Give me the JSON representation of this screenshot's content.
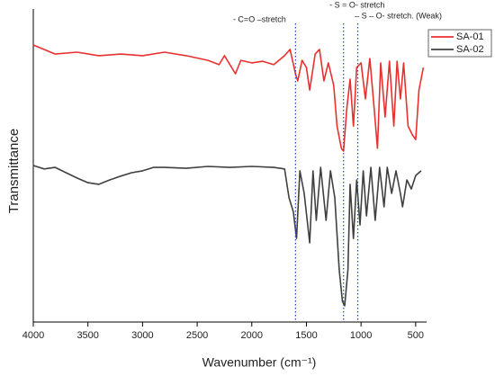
{
  "chart_data": {
    "type": "line",
    "xlabel": "Wavenumber (cm⁻¹)",
    "ylabel": "Transmittance",
    "xlim": [
      4000,
      400
    ],
    "ylim": [
      0,
      100
    ],
    "xticks": [
      4000,
      3500,
      3000,
      2500,
      2000,
      1500,
      1000,
      500
    ],
    "legend": "upper right",
    "annotations": [
      {
        "text": "- C=O –stretch",
        "x": 1600
      },
      {
        "text": "- S = O- stretch",
        "x": 1160
      },
      {
        "text": "– S – O- stretch. (Weak)",
        "x": 1030
      }
    ],
    "series": [
      {
        "name": "SA-01",
        "color": "#e8312f",
        "x": [
          4000,
          3800,
          3600,
          3400,
          3200,
          3000,
          2800,
          2600,
          2400,
          2300,
          2250,
          2150,
          2100,
          2000,
          1900,
          1800,
          1700,
          1650,
          1600,
          1580,
          1540,
          1500,
          1470,
          1420,
          1380,
          1340,
          1300,
          1250,
          1220,
          1180,
          1160,
          1130,
          1100,
          1070,
          1040,
          1000,
          960,
          920,
          880,
          850,
          820,
          780,
          740,
          700,
          670,
          640,
          610,
          570,
          530,
          500,
          470,
          430
        ],
        "values": [
          88.5,
          85.6,
          86.2,
          85.1,
          85.6,
          85.1,
          86.2,
          85.1,
          83.6,
          82.2,
          85.1,
          79.3,
          83.6,
          82.8,
          83.3,
          82.2,
          85.1,
          87.1,
          79.3,
          77.0,
          83.6,
          81.3,
          74.1,
          85.6,
          87.1,
          77.0,
          82.8,
          75.6,
          62.6,
          55.5,
          54.6,
          68.4,
          77.6,
          62.6,
          81.3,
          82.8,
          71.3,
          84.2,
          68.4,
          55.5,
          82.8,
          65.5,
          83.3,
          62.6,
          83.3,
          71.3,
          82.8,
          62.6,
          59.8,
          58.3,
          74.1,
          81.3
        ]
      },
      {
        "name": "SA-02",
        "color": "#404040",
        "x": [
          4000,
          3900,
          3800,
          3700,
          3600,
          3500,
          3400,
          3300,
          3200,
          3100,
          3000,
          2900,
          2800,
          2600,
          2400,
          2200,
          2000,
          1800,
          1700,
          1660,
          1620,
          1590,
          1560,
          1520,
          1470,
          1440,
          1410,
          1370,
          1320,
          1280,
          1240,
          1200,
          1170,
          1150,
          1120,
          1100,
          1070,
          1040,
          1010,
          980,
          950,
          910,
          870,
          830,
          790,
          760,
          720,
          680,
          640,
          620,
          580,
          540,
          500,
          450
        ],
        "values": [
          50.0,
          48.9,
          49.4,
          47.7,
          46.0,
          44.5,
          44.0,
          45.4,
          46.6,
          47.7,
          48.3,
          49.4,
          49.4,
          49.1,
          49.7,
          49.4,
          49.7,
          49.4,
          48.9,
          39.7,
          35.3,
          26.7,
          48.3,
          41.1,
          25.3,
          48.3,
          32.5,
          49.4,
          32.5,
          48.3,
          39.7,
          16.7,
          6.6,
          5.2,
          16.7,
          44.0,
          26.7,
          45.4,
          31.0,
          48.3,
          33.9,
          49.4,
          32.5,
          49.4,
          36.8,
          49.4,
          41.1,
          48.3,
          41.1,
          36.8,
          45.4,
          42.5,
          46.8,
          48.3
        ]
      }
    ]
  }
}
